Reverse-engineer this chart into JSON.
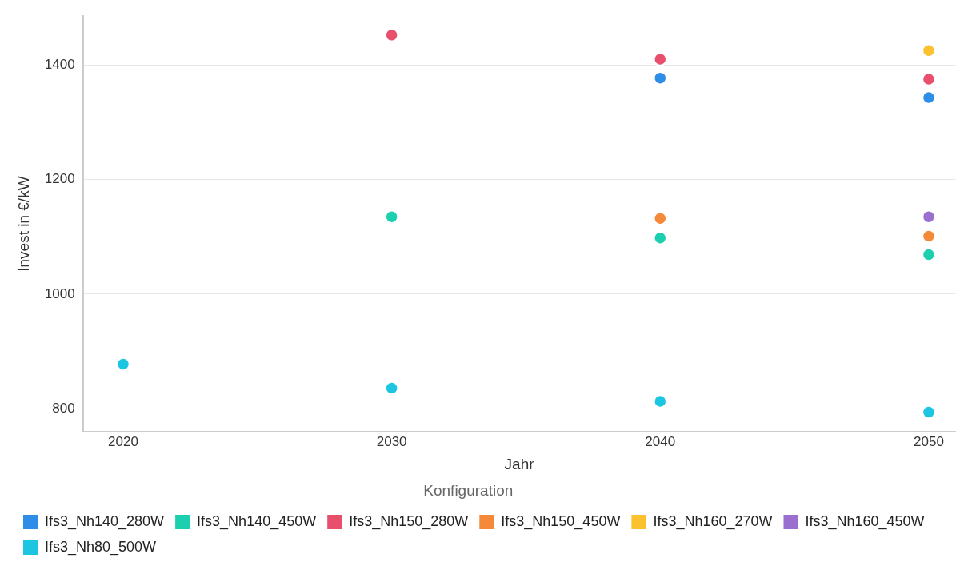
{
  "chart_data": {
    "type": "scatter",
    "xlabel": "Jahr",
    "ylabel": "Invest in €/kW",
    "legend_title": "Konfiguration",
    "xlim": [
      2018.5,
      2051
    ],
    "xticks": [
      2020,
      2030,
      2040,
      2050
    ],
    "ylim": [
      760,
      1485
    ],
    "yticks": [
      800,
      1000,
      1200,
      1400
    ],
    "grid": "y",
    "legend": "bottom left",
    "marker": "circle",
    "series": [
      {
        "name": "Ifs3_Nh140_280W",
        "color": "#2e8de6",
        "x": [
          2040,
          2050
        ],
        "values": [
          1377,
          1343
        ]
      },
      {
        "name": "Ifs3_Nh140_450W",
        "color": "#1ccfae",
        "x": [
          2030,
          2040,
          2050
        ],
        "values": [
          1135,
          1098,
          1069
        ]
      },
      {
        "name": "Ifs3_Nh150_280W",
        "color": "#e84f6d",
        "x": [
          2030,
          2040,
          2050
        ],
        "values": [
          1452,
          1410,
          1375
        ]
      },
      {
        "name": "Ifs3_Nh150_450W",
        "color": "#f5893a",
        "x": [
          2040,
          2050
        ],
        "values": [
          1132,
          1101
        ]
      },
      {
        "name": "Ifs3_Nh160_270W",
        "color": "#fbc12e",
        "x": [
          2050
        ],
        "values": [
          1425
        ]
      },
      {
        "name": "Ifs3_Nh160_450W",
        "color": "#9a6fd0",
        "x": [
          2050
        ],
        "values": [
          1135
        ]
      },
      {
        "name": "Ifs3_Nh80_500W",
        "color": "#1cc6e0",
        "x": [
          2020,
          2030,
          2040,
          2050
        ],
        "values": [
          878,
          836,
          813,
          794
        ]
      }
    ]
  }
}
